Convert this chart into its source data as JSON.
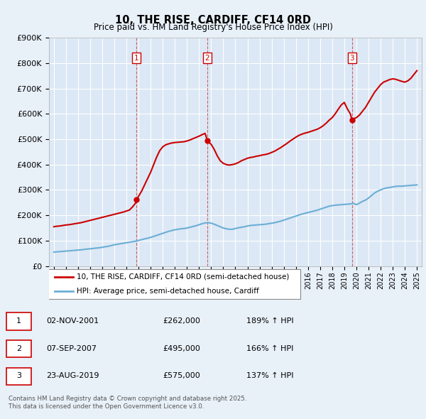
{
  "title": "10, THE RISE, CARDIFF, CF14 0RD",
  "subtitle": "Price paid vs. HM Land Registry's House Price Index (HPI)",
  "bg_color": "#e8f0f8",
  "plot_bg_color": "#dce8f5",
  "grid_color": "#ffffff",
  "hpi_color": "#6baed6",
  "price_color": "#cc0000",
  "ylim": [
    0,
    900000
  ],
  "yticks": [
    0,
    100000,
    200000,
    300000,
    400000,
    500000,
    600000,
    700000,
    800000,
    900000
  ],
  "xlim_start": 1994.6,
  "xlim_end": 2025.4,
  "sale_dates": [
    2001.84,
    2007.68,
    2019.64
  ],
  "sale_prices": [
    262000,
    495000,
    575000
  ],
  "sale_labels": [
    "1",
    "2",
    "3"
  ],
  "vline_dates": [
    2001.84,
    2007.68,
    2019.64
  ],
  "legend_price_label": "10, THE RISE, CARDIFF, CF14 0RD (semi-detached house)",
  "legend_hpi_label": "HPI: Average price, semi-detached house, Cardiff",
  "table_entries": [
    {
      "label": "1",
      "date": "02-NOV-2001",
      "price": "£262,000",
      "hpi": "189% ↑ HPI"
    },
    {
      "label": "2",
      "date": "07-SEP-2007",
      "price": "£495,000",
      "hpi": "166% ↑ HPI"
    },
    {
      "label": "3",
      "date": "23-AUG-2019",
      "price": "£575,000",
      "hpi": "137% ↑ HPI"
    }
  ],
  "footer_text": "Contains HM Land Registry data © Crown copyright and database right 2025.\nThis data is licensed under the Open Government Licence v3.0.",
  "hpi_x": [
    1995.0,
    1995.25,
    1995.5,
    1995.75,
    1996.0,
    1996.25,
    1996.5,
    1996.75,
    1997.0,
    1997.25,
    1997.5,
    1997.75,
    1998.0,
    1998.25,
    1998.5,
    1998.75,
    1999.0,
    1999.25,
    1999.5,
    1999.75,
    2000.0,
    2000.25,
    2000.5,
    2000.75,
    2001.0,
    2001.25,
    2001.5,
    2001.75,
    2002.0,
    2002.25,
    2002.5,
    2002.75,
    2003.0,
    2003.25,
    2003.5,
    2003.75,
    2004.0,
    2004.25,
    2004.5,
    2004.75,
    2005.0,
    2005.25,
    2005.5,
    2005.75,
    2006.0,
    2006.25,
    2006.5,
    2006.75,
    2007.0,
    2007.25,
    2007.5,
    2007.75,
    2008.0,
    2008.25,
    2008.5,
    2008.75,
    2009.0,
    2009.25,
    2009.5,
    2009.75,
    2010.0,
    2010.25,
    2010.5,
    2010.75,
    2011.0,
    2011.25,
    2011.5,
    2011.75,
    2012.0,
    2012.25,
    2012.5,
    2012.75,
    2013.0,
    2013.25,
    2013.5,
    2013.75,
    2014.0,
    2014.25,
    2014.5,
    2014.75,
    2015.0,
    2015.25,
    2015.5,
    2015.75,
    2016.0,
    2016.25,
    2016.5,
    2016.75,
    2017.0,
    2017.25,
    2017.5,
    2017.75,
    2018.0,
    2018.25,
    2018.5,
    2018.75,
    2019.0,
    2019.25,
    2019.5,
    2019.75,
    2020.0,
    2020.25,
    2020.5,
    2020.75,
    2021.0,
    2021.25,
    2021.5,
    2021.75,
    2022.0,
    2022.25,
    2022.5,
    2022.75,
    2023.0,
    2023.25,
    2023.5,
    2023.75,
    2024.0,
    2024.25,
    2024.5,
    2024.75,
    2025.0
  ],
  "hpi_y": [
    55000,
    56000,
    57000,
    58000,
    59000,
    60000,
    61000,
    62000,
    63000,
    64000,
    65500,
    67000,
    68000,
    69500,
    71000,
    72000,
    74000,
    76000,
    78000,
    81000,
    84000,
    86000,
    88000,
    90000,
    92000,
    94000,
    96000,
    98000,
    101000,
    104000,
    107000,
    110000,
    113000,
    117000,
    121000,
    125000,
    129000,
    133000,
    137000,
    140000,
    143000,
    145000,
    147000,
    148000,
    150000,
    153000,
    156000,
    159000,
    163000,
    167000,
    170000,
    171000,
    169000,
    165000,
    160000,
    155000,
    150000,
    147000,
    145000,
    145000,
    148000,
    151000,
    153000,
    155000,
    158000,
    160000,
    161000,
    162000,
    163000,
    164000,
    165000,
    167000,
    169000,
    171000,
    174000,
    177000,
    181000,
    185000,
    189000,
    193000,
    197000,
    201000,
    205000,
    208000,
    211000,
    214000,
    217000,
    220000,
    224000,
    228000,
    232000,
    236000,
    238000,
    240000,
    241000,
    242000,
    243000,
    244000,
    245000,
    247000,
    242000,
    248000,
    255000,
    260000,
    268000,
    278000,
    288000,
    295000,
    300000,
    305000,
    308000,
    310000,
    312000,
    314000,
    315000,
    315000,
    316000,
    317000,
    318000,
    319000,
    320000
  ],
  "price_x": [
    1995.0,
    1995.25,
    1995.5,
    1995.75,
    1996.0,
    1996.25,
    1996.5,
    1996.75,
    1997.0,
    1997.25,
    1997.5,
    1997.75,
    1998.0,
    1998.25,
    1998.5,
    1998.75,
    1999.0,
    1999.25,
    1999.5,
    1999.75,
    2000.0,
    2000.25,
    2000.5,
    2000.75,
    2001.0,
    2001.25,
    2001.5,
    2001.75,
    2001.84,
    2002.0,
    2002.25,
    2002.5,
    2002.75,
    2003.0,
    2003.25,
    2003.5,
    2003.75,
    2004.0,
    2004.25,
    2004.5,
    2004.75,
    2005.0,
    2005.25,
    2005.5,
    2005.75,
    2006.0,
    2006.25,
    2006.5,
    2006.75,
    2007.0,
    2007.25,
    2007.5,
    2007.68,
    2007.75,
    2008.0,
    2008.25,
    2008.5,
    2008.75,
    2009.0,
    2009.25,
    2009.5,
    2009.75,
    2010.0,
    2010.25,
    2010.5,
    2010.75,
    2011.0,
    2011.25,
    2011.5,
    2011.75,
    2012.0,
    2012.25,
    2012.5,
    2012.75,
    2013.0,
    2013.25,
    2013.5,
    2013.75,
    2014.0,
    2014.25,
    2014.5,
    2014.75,
    2015.0,
    2015.25,
    2015.5,
    2015.75,
    2016.0,
    2016.25,
    2016.5,
    2016.75,
    2017.0,
    2017.25,
    2017.5,
    2017.75,
    2018.0,
    2018.25,
    2018.5,
    2018.75,
    2019.0,
    2019.25,
    2019.5,
    2019.64,
    2019.75,
    2020.0,
    2020.25,
    2020.5,
    2020.75,
    2021.0,
    2021.25,
    2021.5,
    2021.75,
    2022.0,
    2022.25,
    2022.5,
    2022.75,
    2023.0,
    2023.25,
    2023.5,
    2023.75,
    2024.0,
    2024.25,
    2024.5,
    2024.75,
    2025.0
  ],
  "price_y": [
    155000,
    157000,
    158000,
    160000,
    162000,
    163000,
    165000,
    167000,
    169000,
    171000,
    174000,
    177000,
    180000,
    183000,
    186000,
    189000,
    192000,
    195000,
    198000,
    201000,
    204000,
    207000,
    210000,
    213000,
    217000,
    221000,
    233000,
    248000,
    262000,
    275000,
    295000,
    320000,
    345000,
    370000,
    400000,
    430000,
    455000,
    470000,
    478000,
    482000,
    485000,
    487000,
    488000,
    489000,
    490000,
    493000,
    497000,
    502000,
    507000,
    512000,
    518000,
    523000,
    495000,
    490000,
    480000,
    460000,
    435000,
    415000,
    405000,
    400000,
    398000,
    400000,
    403000,
    408000,
    415000,
    420000,
    425000,
    428000,
    430000,
    433000,
    435000,
    438000,
    440000,
    443000,
    448000,
    453000,
    460000,
    467000,
    475000,
    483000,
    492000,
    500000,
    508000,
    515000,
    520000,
    524000,
    527000,
    531000,
    535000,
    539000,
    545000,
    553000,
    563000,
    575000,
    585000,
    600000,
    618000,
    635000,
    645000,
    620000,
    600000,
    575000,
    580000,
    585000,
    595000,
    610000,
    625000,
    645000,
    665000,
    685000,
    700000,
    715000,
    725000,
    730000,
    735000,
    738000,
    736000,
    732000,
    728000,
    725000,
    730000,
    740000,
    755000,
    770000
  ]
}
